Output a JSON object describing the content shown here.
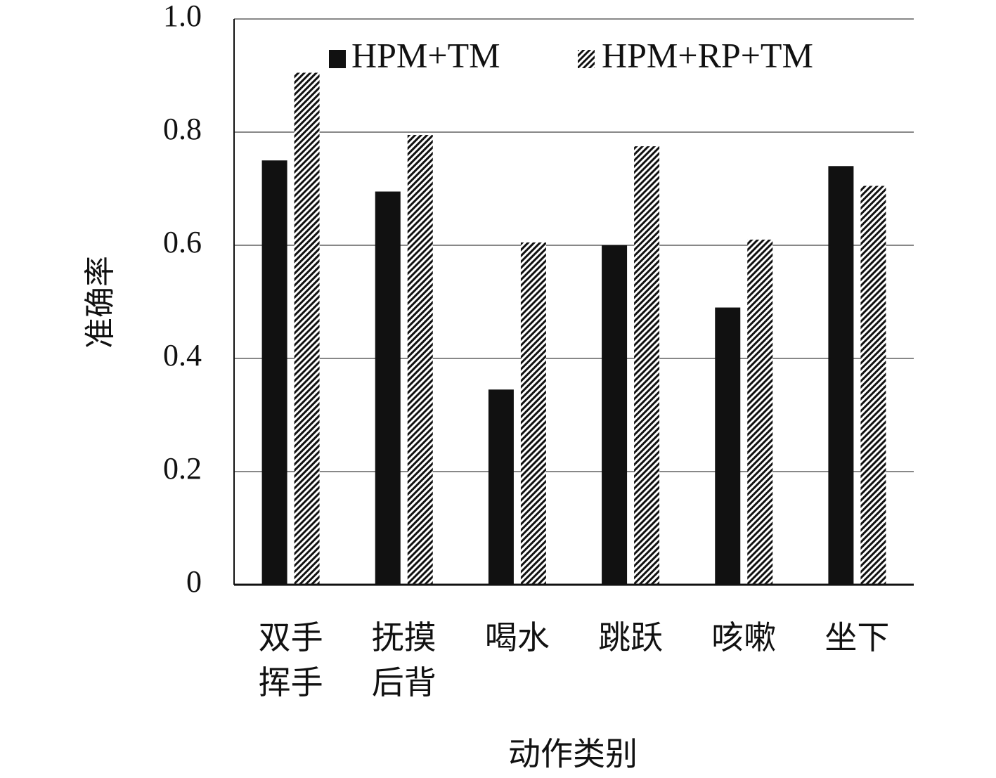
{
  "chart_data": {
    "type": "bar",
    "x_label": "动作类别",
    "y_label": "准确率",
    "categories": [
      "双手挥手",
      "抚摸后背",
      "喝水",
      "跳跃",
      "咳嗽",
      "坐下"
    ],
    "series": [
      {
        "name": "HPM+TM",
        "color": "#111111",
        "fill": "solid",
        "values": [
          0.75,
          0.695,
          0.345,
          0.6,
          0.49,
          0.74
        ]
      },
      {
        "name": "HPM+RP+TM",
        "color": "#111111",
        "fill": "hatch",
        "values": [
          0.905,
          0.795,
          0.605,
          0.775,
          0.61,
          0.705
        ]
      }
    ],
    "ylim": [
      0,
      1
    ],
    "yticks": [
      0,
      0.2,
      0.4,
      0.6,
      0.8,
      {
        "value": 1,
        "label": "1.0"
      }
    ],
    "grid": true,
    "legend": "top-right"
  }
}
